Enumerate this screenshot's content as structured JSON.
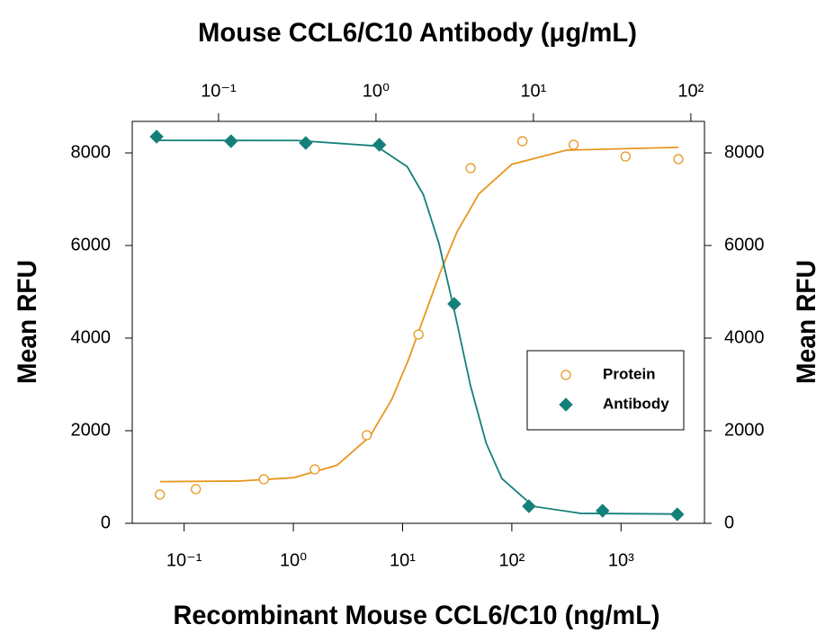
{
  "chart_data": {
    "type": "scatter",
    "title": "Mouse CCL6/C10 Antibody (μg/mL)",
    "x_label": "Recombinant Mouse CCL6/C10 (ng/mL)",
    "y_label": "Mean RFU",
    "y2_label": "Mean RFU",
    "xscale": "log",
    "x2scale": "log",
    "xlim": [
      0.0335,
      5800
    ],
    "xticks": [
      {
        "value": 0.1,
        "label": "10⁻¹"
      },
      {
        "value": 1,
        "label": "10⁰"
      },
      {
        "value": 10,
        "label": "10¹"
      },
      {
        "value": 100,
        "label": "10²"
      },
      {
        "value": 1000,
        "label": "10³"
      }
    ],
    "x2lim": [
      0.0283,
      122
    ],
    "x2ticks": [
      {
        "value": 0.1,
        "label": "10⁻¹"
      },
      {
        "value": 1,
        "label": "10⁰"
      },
      {
        "value": 10,
        "label": "10¹"
      },
      {
        "value": 100,
        "label": "10²"
      }
    ],
    "ylim": [
      0,
      8680
    ],
    "yticks": [
      0,
      2000,
      4000,
      6000,
      8000
    ],
    "y2lim": [
      0,
      8680
    ],
    "y2ticks": [
      0,
      2000,
      4000,
      6000,
      8000
    ],
    "grid": false,
    "legend": "right",
    "series": [
      {
        "name": "Protein",
        "color": "#e8961e",
        "marker": "circle-open",
        "xaxis": "x",
        "x": [
          0.06,
          0.128,
          0.537,
          1.57,
          4.7,
          14.0,
          42.0,
          125,
          368,
          1099,
          3350
        ],
        "values": [
          621,
          738,
          951,
          1165,
          1903,
          4078,
          7670,
          8252,
          8175,
          7922,
          7864
        ],
        "fit": {
          "x": [
            0.06,
            0.32,
            1,
            2.51,
            5.01,
            7.94,
            11.2,
            15.8,
            22.4,
            31.6,
            50.1,
            100,
            316,
            3350
          ],
          "values": [
            901,
            913,
            984,
            1254,
            1872,
            2670,
            3506,
            4474,
            5452,
            6300,
            7118,
            7753,
            8059,
            8120
          ]
        }
      },
      {
        "name": "Antibody",
        "color": "#14807a",
        "marker": "diamond",
        "xaxis": "x2",
        "axis": "y2",
        "x": [
          0.0404,
          0.12,
          0.358,
          1.05,
          3.14,
          9.36,
          27.5,
          82
        ],
        "values": [
          8350,
          8252,
          8214,
          8175,
          4738,
          369,
          272,
          194
        ],
        "fit": {
          "x": [
            0.0407,
            0.316,
            1,
            1.58,
            2.0,
            2.51,
            3.16,
            3.98,
            5.01,
            6.31,
            10,
            20,
            82
          ],
          "values": [
            8270,
            8268,
            8150,
            7701,
            7097,
            6048,
            4560,
            2978,
            1731,
            965,
            365,
            215,
            200
          ]
        }
      }
    ]
  }
}
